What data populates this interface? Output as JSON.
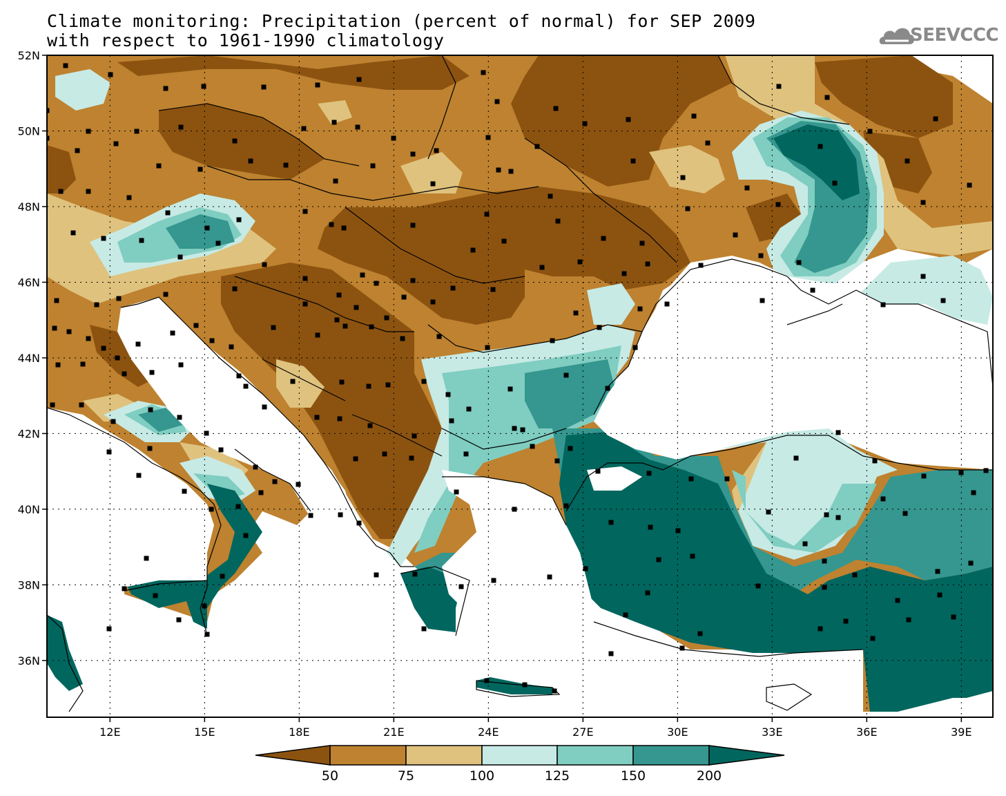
{
  "title_line1": "Climate monitoring: Precipitation (percent of normal) for SEP 2009",
  "title_line2": "with respect to 1961-1990 climatology",
  "logo_text": "SEEVCCC",
  "logo_icon": "cloud-icon",
  "map": {
    "lon_range": [
      10,
      40
    ],
    "lat_range": [
      34.5,
      52
    ],
    "lat_ticks": [
      "52N",
      "50N",
      "48N",
      "46N",
      "44N",
      "42N",
      "40N",
      "38N",
      "36N"
    ],
    "lon_ticks": [
      "12E",
      "15E",
      "18E",
      "21E",
      "24E",
      "27E",
      "30E",
      "33E",
      "36E",
      "39E"
    ],
    "grid": "dotted"
  },
  "colorbar": {
    "labels": [
      "50",
      "75",
      "100",
      "125",
      "150",
      "200"
    ],
    "colors": [
      "#8c5310",
      "#be8230",
      "#dfc27e",
      "#c7eae5",
      "#80cdc1",
      "#35978f",
      "#01665e"
    ]
  }
}
